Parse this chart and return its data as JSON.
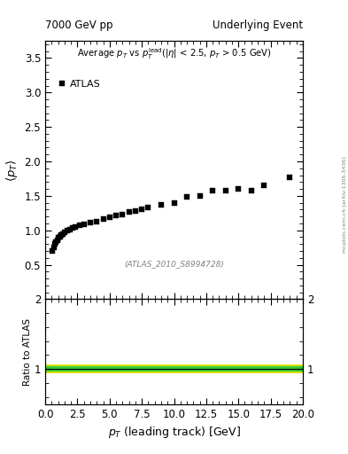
{
  "title_left": "7000 GeV pp",
  "title_right": "Underlying Event",
  "annotation_text": "Average $p_T$ vs $p_T^{\\mathrm{lead}}$(|$\\eta$| < 2.5, $p_T$ > 0.5 GeV)",
  "watermark": "(ATLAS_2010_S8994728)",
  "arxiv_text": "mcplots.cern.ch [arXiv:1306.3436]",
  "ylabel_main": "$\\langle p_T \\rangle$",
  "ylabel_ratio": "Ratio to ATLAS",
  "xlabel": "$p_T$ (leading track) [GeV]",
  "legend_label": "ATLAS",
  "xlim": [
    0,
    20
  ],
  "ylim_main": [
    0,
    3.75
  ],
  "ylim_ratio": [
    0.5,
    2.0
  ],
  "yticks_main": [
    0.5,
    1.0,
    1.5,
    2.0,
    2.5,
    3.0,
    3.5
  ],
  "yticks_ratio": [
    1.0,
    2.0
  ],
  "ytick_labels_ratio_left": [
    "1",
    "2"
  ],
  "ytick_labels_ratio_right": [
    "1",
    "2"
  ],
  "data_x": [
    0.55,
    0.65,
    0.75,
    0.85,
    0.95,
    1.05,
    1.15,
    1.25,
    1.35,
    1.5,
    1.7,
    1.9,
    2.1,
    2.35,
    2.65,
    3.0,
    3.5,
    4.0,
    4.5,
    5.0,
    5.5,
    6.0,
    6.5,
    7.0,
    7.5,
    8.0,
    9.0,
    10.0,
    11.0,
    12.0,
    13.0,
    14.0,
    15.0,
    16.0,
    17.0,
    19.0
  ],
  "data_y": [
    0.7,
    0.75,
    0.8,
    0.83,
    0.86,
    0.89,
    0.91,
    0.93,
    0.95,
    0.97,
    0.99,
    1.01,
    1.03,
    1.05,
    1.07,
    1.09,
    1.11,
    1.13,
    1.16,
    1.19,
    1.21,
    1.23,
    1.26,
    1.28,
    1.3,
    1.33,
    1.37,
    1.4,
    1.48,
    1.5,
    1.57,
    1.57,
    1.6,
    1.57,
    1.65,
    1.77
  ],
  "marker_color": "black",
  "marker_size": 4,
  "ratio_line_y": 1.0,
  "ratio_band_green_low": 0.965,
  "ratio_band_green_high": 1.035,
  "ratio_band_yellow_low": 0.935,
  "ratio_band_yellow_high": 1.065,
  "green_color": "#33cc33",
  "yellow_color": "#dddd00",
  "background_color": "white"
}
